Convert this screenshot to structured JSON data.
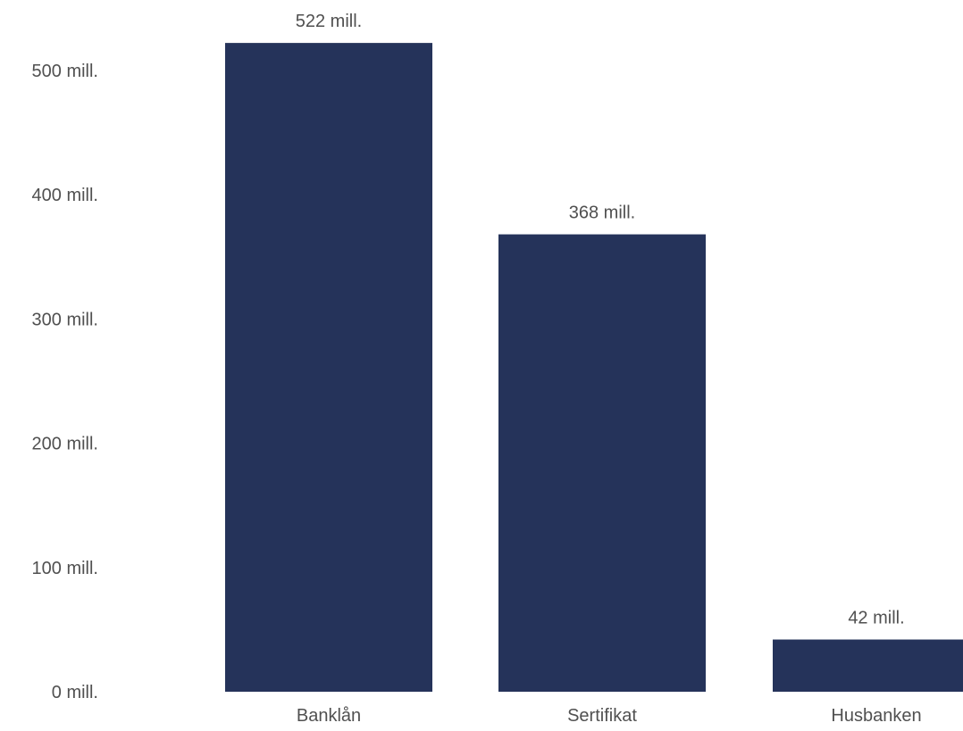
{
  "chart_data": {
    "type": "bar",
    "categories": [
      "Banklån",
      "Sertifikat",
      "Husbanken"
    ],
    "values": [
      522,
      368,
      42
    ],
    "value_labels": [
      "522 mill.",
      "368 mill.",
      "42 mill."
    ],
    "y_ticks": [
      0,
      100,
      200,
      300,
      400,
      500
    ],
    "y_tick_labels": [
      "0 mill.",
      "100 mill.",
      "200 mill.",
      "300 mill.",
      "400 mill.",
      "500 mill."
    ],
    "ylim": [
      0,
      522
    ],
    "grid": false,
    "legend": "none",
    "colors": {
      "bar": "#25335a",
      "text": "#505050"
    }
  }
}
